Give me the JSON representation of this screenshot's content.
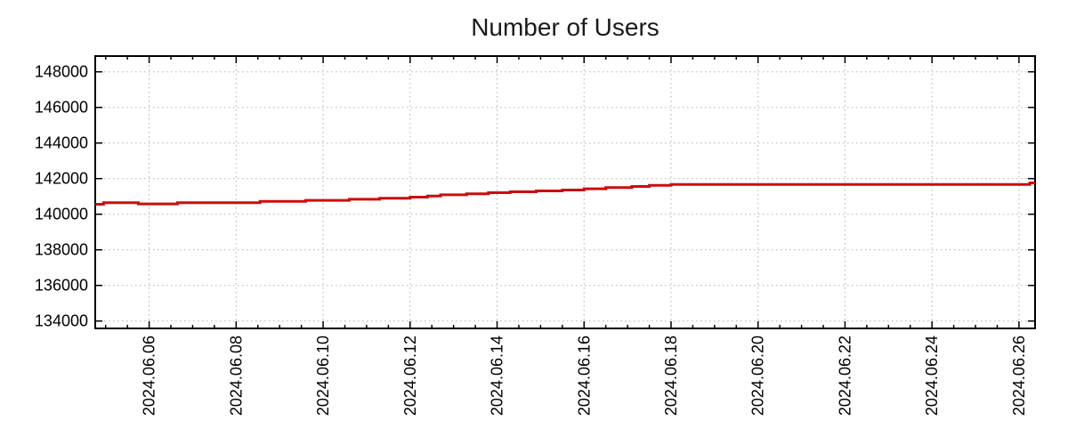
{
  "chart_data": {
    "type": "line",
    "title": "Number of Users",
    "legend": "none",
    "grid": "dotted",
    "colors": {
      "line": "#cc0d0d",
      "grid": "#b0b0b0",
      "axis": "#000000",
      "text": "#000000",
      "background": "#ffffff"
    },
    "x_axis": {
      "kind": "date",
      "range_days": [
        4.76,
        26.37
      ],
      "minor_tick_step_days": 0.5,
      "major_ticks": [
        {
          "day": 6,
          "label": "2024.06.06"
        },
        {
          "day": 8,
          "label": "2024.06.08"
        },
        {
          "day": 10,
          "label": "2024.06.10"
        },
        {
          "day": 12,
          "label": "2024.06.12"
        },
        {
          "day": 14,
          "label": "2024.06.14"
        },
        {
          "day": 16,
          "label": "2024.06.16"
        },
        {
          "day": 18,
          "label": "2024.06.18"
        },
        {
          "day": 20,
          "label": "2024.06.20"
        },
        {
          "day": 22,
          "label": "2024.06.22"
        },
        {
          "day": 24,
          "label": "2024.06.24"
        },
        {
          "day": 26,
          "label": "2024.06.26"
        }
      ]
    },
    "y_axis": {
      "range": [
        133585,
        148885
      ],
      "ticks": [
        134000,
        136000,
        138000,
        140000,
        142000,
        144000,
        146000,
        148000
      ],
      "tick_labels": [
        "134000",
        "136000",
        "138000",
        "140000",
        "142000",
        "144000",
        "146000",
        "148000"
      ]
    },
    "series": [
      {
        "name": "Number of Users",
        "color": "#cc0d0d",
        "style": "steps",
        "points": [
          [
            4.76,
            140560
          ],
          [
            4.95,
            140650
          ],
          [
            5.75,
            140580
          ],
          [
            6.65,
            140650
          ],
          [
            8.55,
            140720
          ],
          [
            9.6,
            140780
          ],
          [
            10.6,
            140840
          ],
          [
            11.3,
            140900
          ],
          [
            12.0,
            140960
          ],
          [
            12.4,
            141020
          ],
          [
            12.7,
            141090
          ],
          [
            13.3,
            141150
          ],
          [
            13.8,
            141210
          ],
          [
            14.3,
            141260
          ],
          [
            14.9,
            141310
          ],
          [
            15.5,
            141360
          ],
          [
            16.0,
            141430
          ],
          [
            16.5,
            141500
          ],
          [
            17.1,
            141560
          ],
          [
            17.5,
            141620
          ],
          [
            18.0,
            141670
          ],
          [
            26.25,
            141760
          ]
        ],
        "end_day": 26.37
      }
    ]
  }
}
